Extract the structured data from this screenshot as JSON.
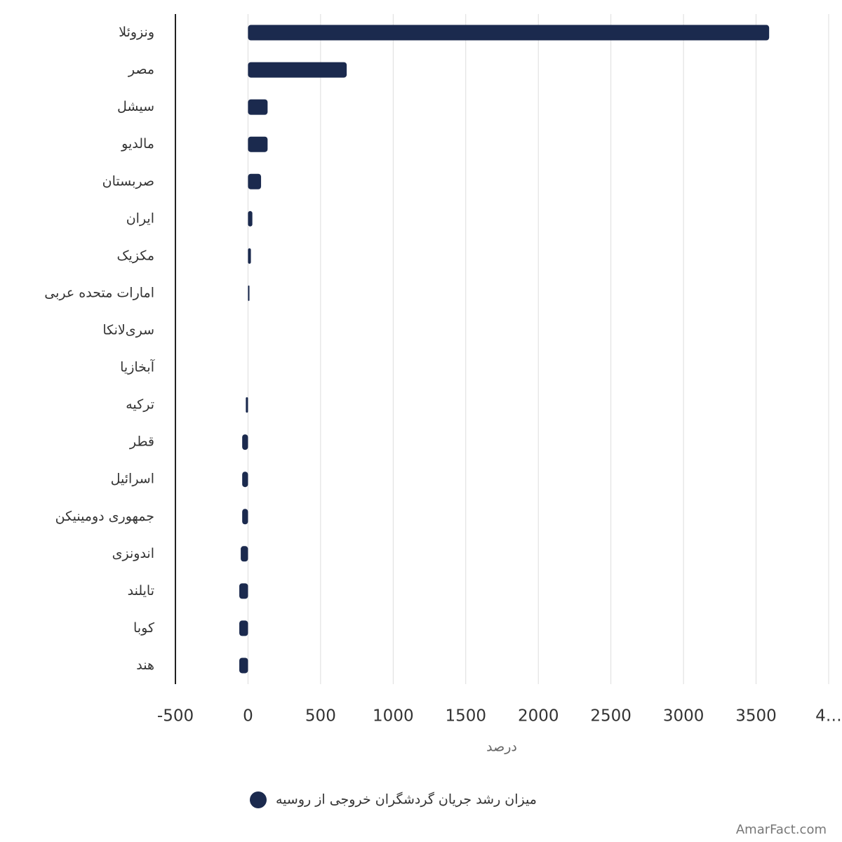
{
  "chart_data": {
    "type": "bar",
    "orientation": "horizontal",
    "categories": [
      "ونزوئلا",
      "مصر",
      "سیشل",
      "مالدیو",
      "صربستان",
      "ایران",
      "مکزیک",
      "امارات متحده عربی",
      "سری‌لانکا",
      "آبخازیا",
      "ترکیه",
      "قطر",
      "اسرائیل",
      "جمهوری دومینیکن",
      "اندونزی",
      "تایلند",
      "کوبا",
      "هند"
    ],
    "series": [
      {
        "name": "میزان رشد جریان گردشگران خروجی از روسیه",
        "color": "#1b2a4e",
        "values": [
          3590,
          680,
          135,
          135,
          90,
          30,
          20,
          10,
          0,
          0,
          -15,
          -40,
          -40,
          -40,
          -50,
          -60,
          -60,
          -60
        ]
      }
    ],
    "xlim": [
      -500,
      4000
    ],
    "xticks": [
      -500,
      0,
      500,
      1000,
      1500,
      2000,
      2500,
      3000,
      3500,
      {
        "value": 4000,
        "label": "4…"
      }
    ],
    "xlabel": "درصد",
    "grid": true,
    "legend": "bottom",
    "watermark": "AmarFact.com"
  }
}
